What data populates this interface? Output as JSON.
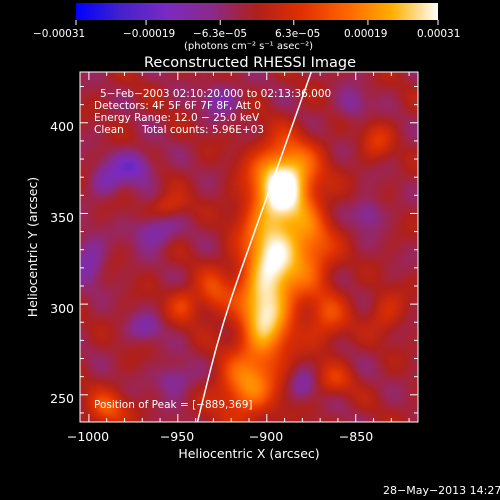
{
  "chart_data": {
    "type": "heatmap",
    "title": "Reconstructed RHESSI Image",
    "xlabel": "Heliocentric X (arcsec)",
    "ylabel": "Heliocentric Y (arcsec)",
    "xlim": [
      -1005,
      -815
    ],
    "ylim": [
      235,
      428
    ],
    "x_ticks": [
      -1000,
      -950,
      -900,
      -850
    ],
    "x_tick_labels": [
      "−1000",
      "−950",
      "−900",
      "−850"
    ],
    "y_ticks": [
      250,
      300,
      350,
      400
    ],
    "y_tick_labels": [
      "250",
      "300",
      "350",
      "400"
    ],
    "colorbar": {
      "label": "(photons cm⁻² s⁻¹ asec⁻²)",
      "range": [
        -0.00031,
        0.00031
      ],
      "ticks": [
        -0.00031,
        -0.00019,
        -6.3e-05,
        6.3e-05,
        0.00019,
        0.00031
      ],
      "tick_labels": [
        "−0.00031",
        "−0.00019",
        "−6.3e−05",
        "6.3e−05",
        "0.00019",
        "0.00031"
      ],
      "colors": [
        "#0000ff",
        "#4422cc",
        "#7a2ac2",
        "#8a2a8a",
        "#b0201a",
        "#e03000",
        "#ff6600",
        "#ffb000",
        "#ffffff"
      ]
    },
    "annotations": {
      "time": "5−Feb−2003 02:10:20.000 to 02:13:36.000",
      "detectors": "Detectors: 4F 5F 6F 7F 8F, Att 0",
      "energy": "Energy Range: 12.0 − 25.0 keV",
      "clean": "Clean",
      "total_counts": "Total counts: 5.96E+03",
      "peak": "Position of Peak = [−889,369]"
    },
    "peak": {
      "x": -889,
      "y": 369
    },
    "limb_arc": [
      [
        -939,
        235
      ],
      [
        -925,
        290
      ],
      [
        -905,
        345
      ],
      [
        -875,
        428
      ]
    ],
    "sources": [
      {
        "x": -889,
        "y": 369,
        "sx": 12,
        "sy": 14,
        "amp": 0.00031
      },
      {
        "x": -896,
        "y": 330,
        "sx": 12,
        "sy": 24,
        "amp": 0.00028
      },
      {
        "x": -902,
        "y": 290,
        "sx": 10,
        "sy": 20,
        "amp": 0.00023
      },
      {
        "x": -913,
        "y": 253,
        "sx": 11,
        "sy": 12,
        "amp": 0.00018
      },
      {
        "x": -874,
        "y": 330,
        "sx": 9,
        "sy": 14,
        "amp": 0.00015
      },
      {
        "x": -866,
        "y": 292,
        "sx": 8,
        "sy": 10,
        "amp": 0.00012
      },
      {
        "x": -930,
        "y": 306,
        "sx": 7,
        "sy": 9,
        "amp": 0.00012
      },
      {
        "x": -947,
        "y": 300,
        "sx": 6,
        "sy": 7,
        "amp": 0.0001
      },
      {
        "x": -990,
        "y": 242,
        "sx": 8,
        "sy": 7,
        "amp": 0.00014
      },
      {
        "x": -862,
        "y": 258,
        "sx": 7,
        "sy": 6,
        "amp": 9e-05
      },
      {
        "x": -833,
        "y": 295,
        "sx": 7,
        "sy": 8,
        "amp": 8e-05
      },
      {
        "x": -838,
        "y": 390,
        "sx": 6,
        "sy": 7,
        "amp": 9e-05
      },
      {
        "x": -955,
        "y": 354,
        "sx": 7,
        "sy": 5,
        "amp": 9e-05
      },
      {
        "x": -963,
        "y": 340,
        "sx": 8,
        "sy": 6,
        "amp": -0.00012
      },
      {
        "x": -975,
        "y": 376,
        "sx": 8,
        "sy": 6,
        "amp": -0.00014
      },
      {
        "x": -990,
        "y": 368,
        "sx": 6,
        "sy": 6,
        "amp": -0.0001
      },
      {
        "x": -1000,
        "y": 324,
        "sx": 6,
        "sy": 9,
        "amp": -0.00011
      },
      {
        "x": -968,
        "y": 287,
        "sx": 6,
        "sy": 5,
        "amp": -9e-05
      },
      {
        "x": -952,
        "y": 258,
        "sx": 7,
        "sy": 6,
        "amp": -0.0001
      },
      {
        "x": -926,
        "y": 413,
        "sx": 7,
        "sy": 6,
        "amp": -0.0001
      },
      {
        "x": -843,
        "y": 350,
        "sx": 6,
        "sy": 6,
        "amp": -9e-05
      },
      {
        "x": -880,
        "y": 255,
        "sx": 5,
        "sy": 6,
        "amp": -8e-05
      },
      {
        "x": -852,
        "y": 410,
        "sx": 6,
        "sy": 6,
        "amp": -8e-05
      }
    ]
  },
  "footer": {
    "timestamp": "28−May−2013 14:27"
  }
}
